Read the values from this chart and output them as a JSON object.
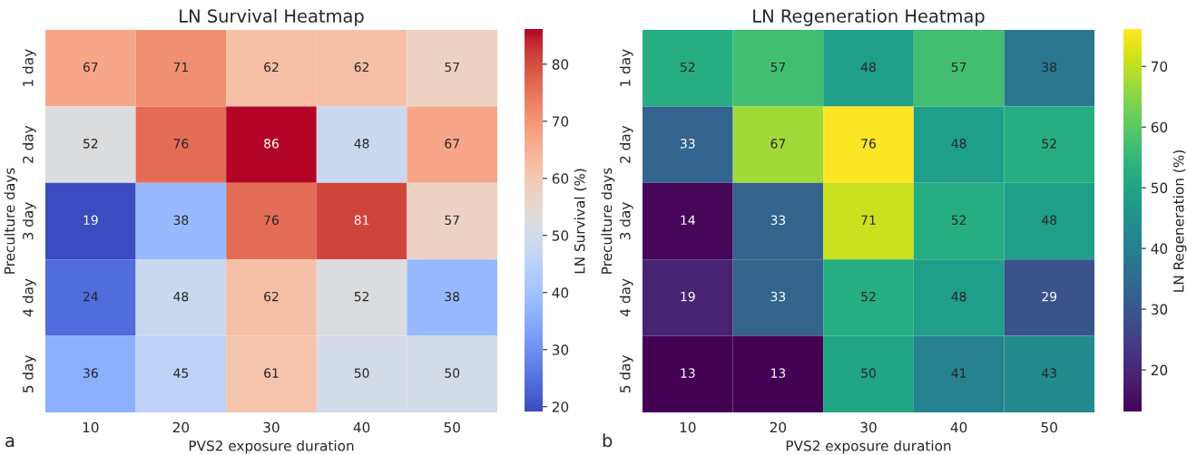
{
  "chart_data": [
    {
      "type": "heatmap",
      "title": "LN Survival Heatmap",
      "xlabel": "PVS2 exposure duration",
      "ylabel": "Preculture days",
      "clabel": "LN Survival (%)",
      "categories": [
        "10",
        "20",
        "30",
        "40",
        "50"
      ],
      "y_categories": [
        "1 day",
        "2 day",
        "3 day",
        "4 day",
        "5 day"
      ],
      "cells": [
        [
          67,
          71,
          62,
          62,
          57
        ],
        [
          52,
          76,
          86,
          48,
          67
        ],
        [
          19,
          38,
          76,
          81,
          57
        ],
        [
          24,
          48,
          62,
          52,
          38
        ],
        [
          36,
          45,
          61,
          50,
          50
        ]
      ],
      "clim": [
        19,
        86
      ],
      "cticks": [
        20,
        30,
        40,
        50,
        60,
        70,
        80
      ],
      "data_labels": true,
      "annotations": [
        "a"
      ]
    },
    {
      "type": "heatmap",
      "title": "LN Regeneration Heatmap",
      "xlabel": "PVS2 exposure duration",
      "ylabel": "Preculture days",
      "clabel": "LN Regeneration (%)",
      "categories": [
        "10",
        "20",
        "30",
        "40",
        "50"
      ],
      "y_categories": [
        "1 day",
        "2 day",
        "3 day",
        "4 day",
        "5 day"
      ],
      "cells": [
        [
          52,
          57,
          48,
          57,
          38
        ],
        [
          33,
          67,
          76,
          48,
          52
        ],
        [
          14,
          33,
          71,
          52,
          48
        ],
        [
          19,
          33,
          52,
          48,
          29
        ],
        [
          13,
          13,
          50,
          41,
          43
        ]
      ],
      "clim": [
        13,
        76
      ],
      "cticks": [
        20,
        30,
        40,
        50,
        60,
        70
      ],
      "data_labels": true,
      "annotations": [
        "b"
      ]
    }
  ]
}
